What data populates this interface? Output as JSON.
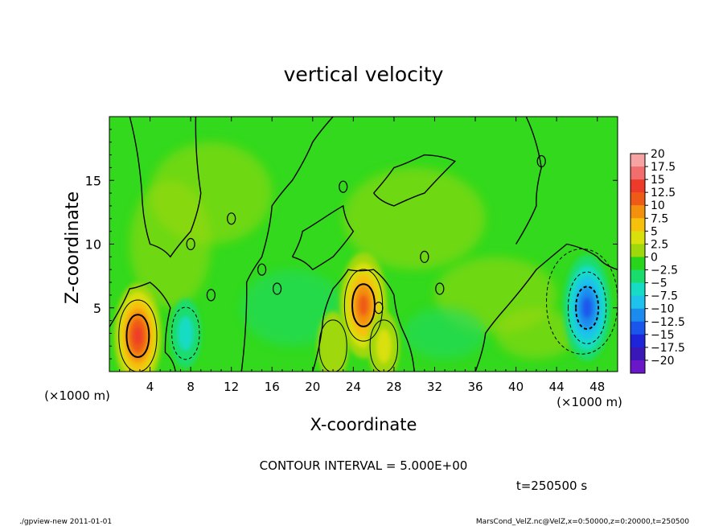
{
  "chart_data": {
    "type": "heatmap",
    "title": "vertical velocity",
    "xlabel": "X-coordinate",
    "ylabel": "Z-coordinate",
    "x_unit": "(×1000 m)",
    "y_unit": "(×1000 m)",
    "xlim": [
      0,
      50
    ],
    "ylim": [
      0,
      20
    ],
    "x_ticks": [
      4,
      8,
      12,
      16,
      20,
      24,
      28,
      32,
      36,
      40,
      44,
      48
    ],
    "y_ticks": [
      5,
      10,
      15
    ],
    "colorbar": {
      "labels": [
        "20",
        "17.5",
        "15",
        "12.5",
        "10",
        "7.5",
        "5",
        "2.5",
        "0",
        "−2.5",
        "−5",
        "−7.5",
        "−10",
        "−12.5",
        "−15",
        "−17.5",
        "−20"
      ],
      "colors": [
        "#f7a3a3",
        "#f26e6e",
        "#ee3a2a",
        "#ef5a16",
        "#f3900e",
        "#f6c10c",
        "#d9e00b",
        "#9fd80b",
        "#27d51b",
        "#1adc6c",
        "#16dcc6",
        "#1ec2ec",
        "#1b8bee",
        "#1a55ec",
        "#1e24d9",
        "#3a17b7",
        "#6a16c9"
      ]
    },
    "features": [
      {
        "x": 2.8,
        "z": 2.8,
        "peak": 15
      },
      {
        "x": 25,
        "z": 5.2,
        "peak": 12.5
      },
      {
        "x": 22,
        "z": 2,
        "peak": 2.5
      },
      {
        "x": 27,
        "z": 2,
        "peak": 5
      },
      {
        "x": 7.5,
        "z": 3,
        "peak": -5
      },
      {
        "x": 47,
        "z": 5,
        "peak": -12.5
      }
    ],
    "contour_interval": "CONTOUR INTERVAL = 5.000E+00",
    "time_label": "t=250500 s"
  },
  "footer": {
    "left": "./gpview-new  2011-01-01",
    "right": "MarsCond_VelZ.nc@VelZ,x=0:50000,z=0:20000,t=250500"
  }
}
